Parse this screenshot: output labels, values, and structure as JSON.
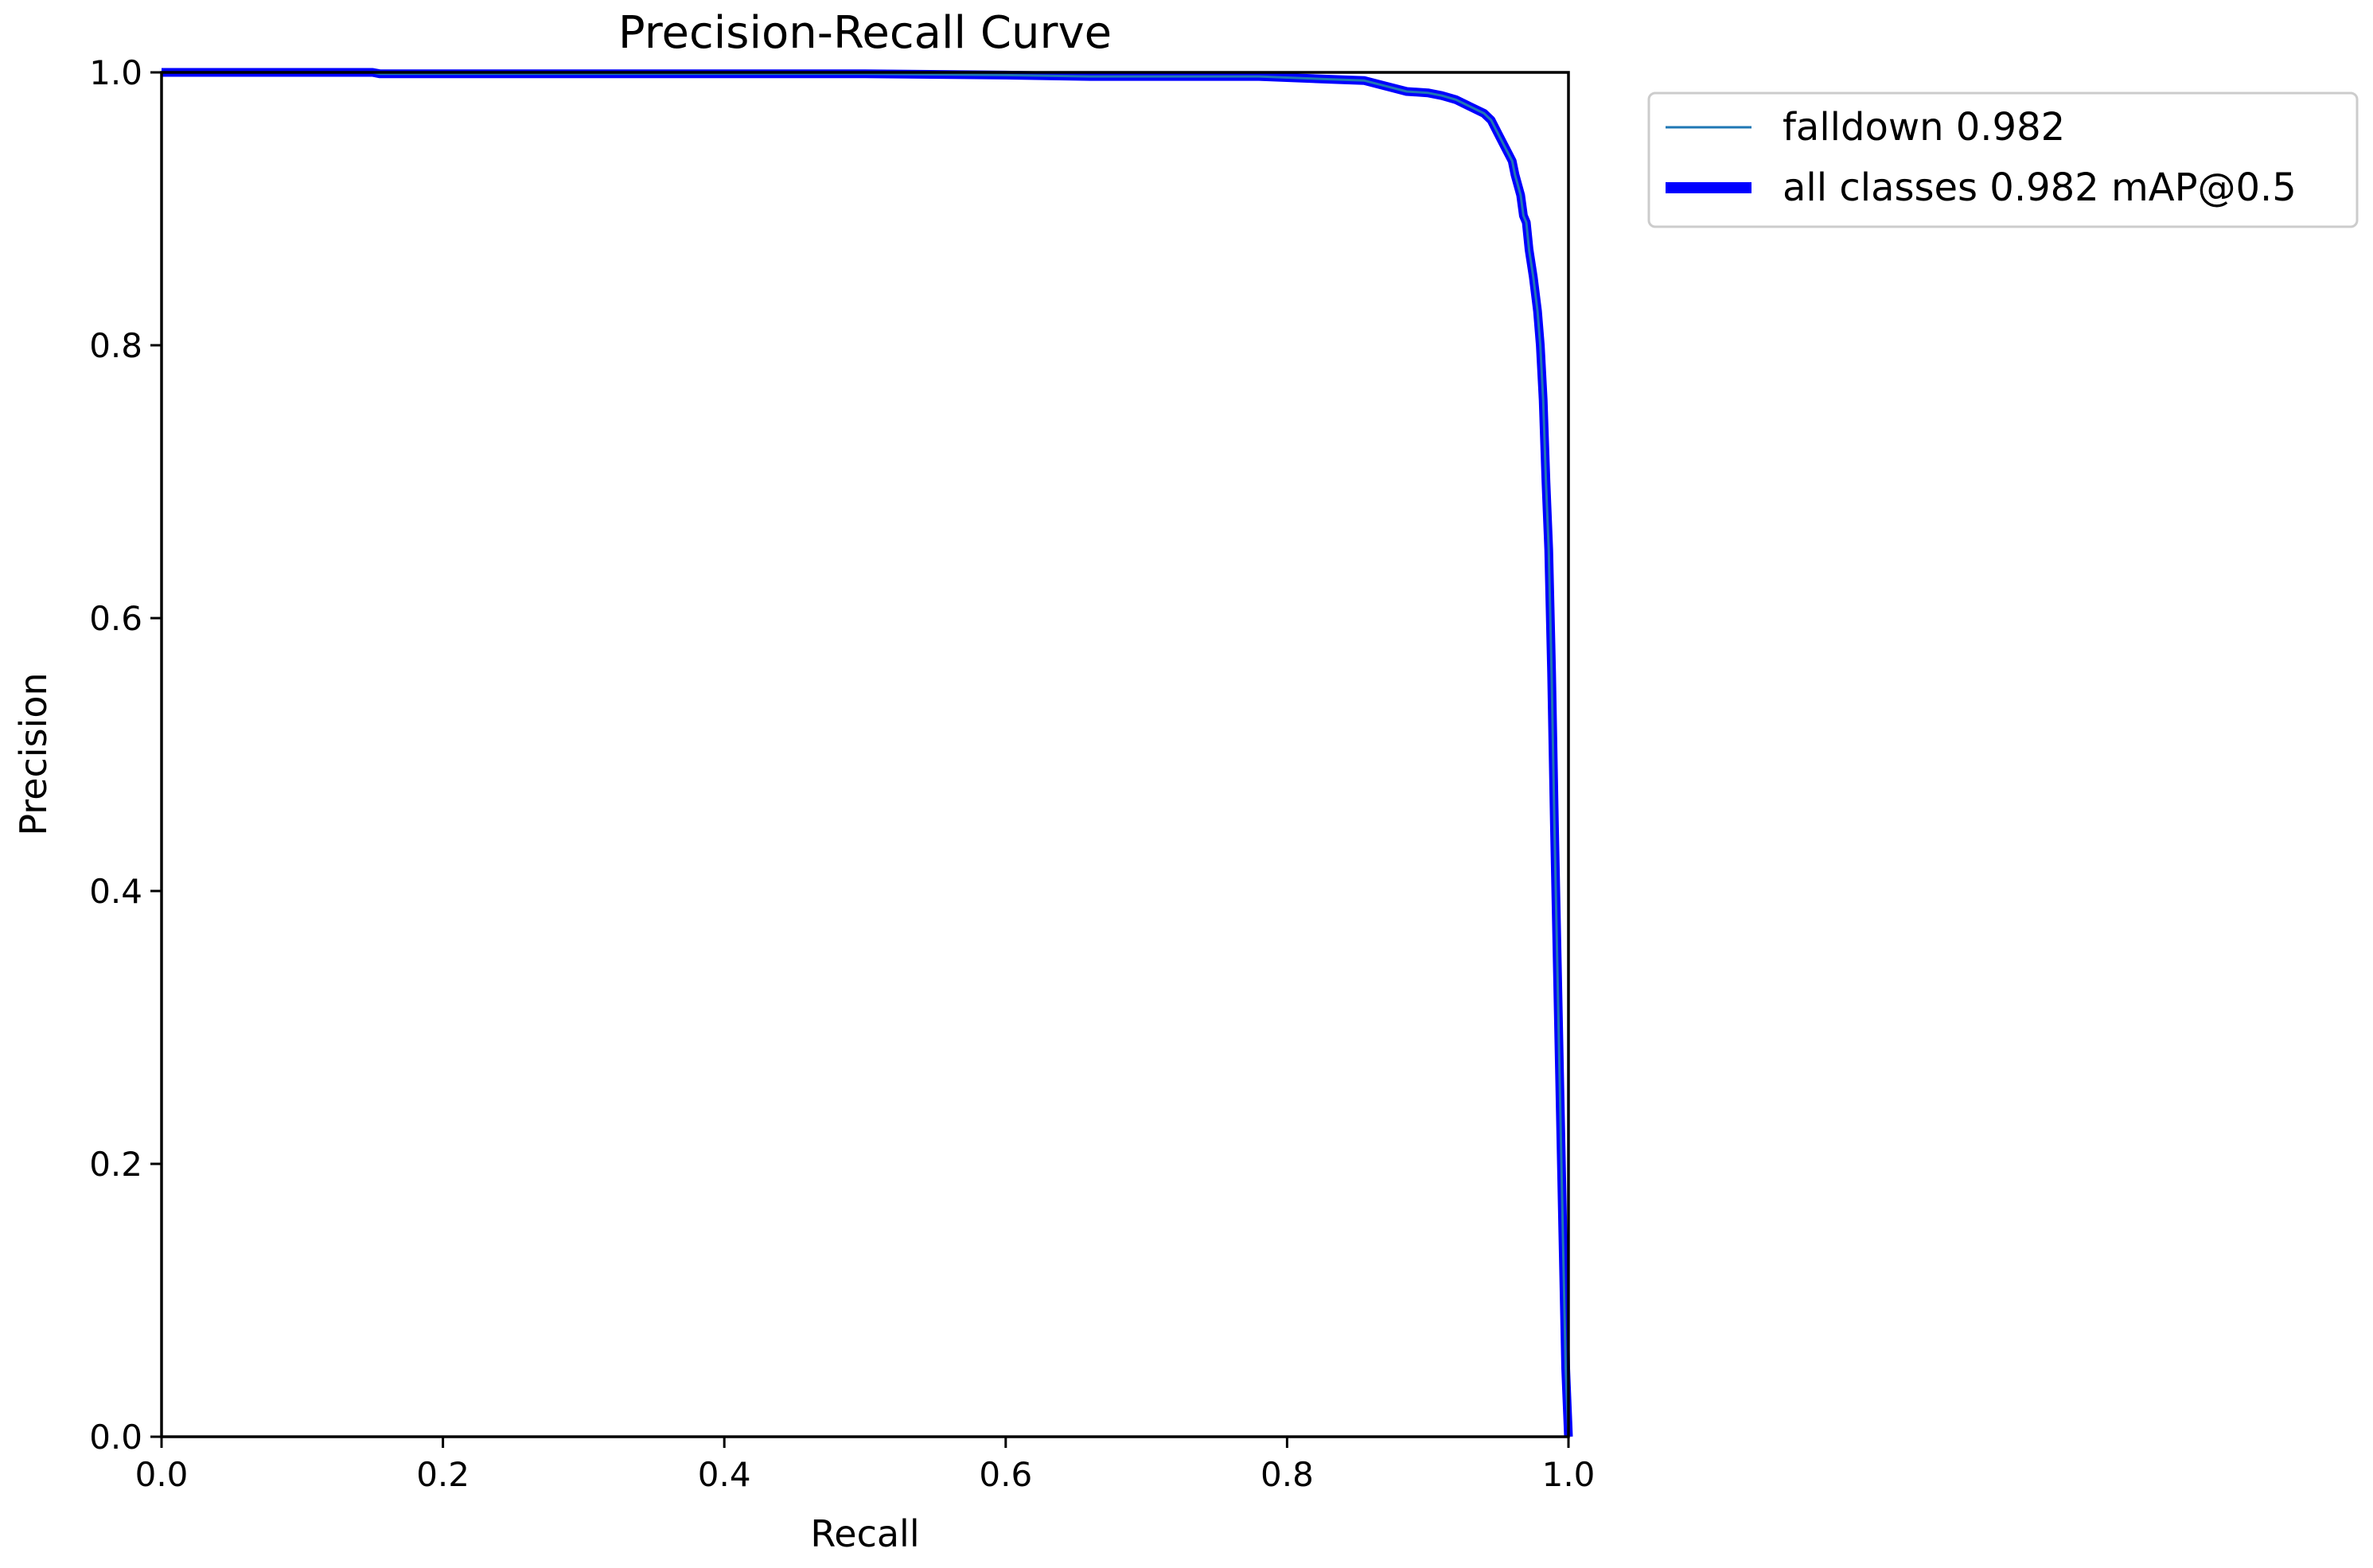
{
  "chart_data": {
    "type": "line",
    "title": "Precision-Recall Curve",
    "xlabel": "Recall",
    "ylabel": "Precision",
    "xlim": [
      0.0,
      1.0
    ],
    "ylim": [
      0.0,
      1.0
    ],
    "xticks": [
      0.0,
      0.2,
      0.4,
      0.6,
      0.8,
      1.0
    ],
    "yticks": [
      0.0,
      0.2,
      0.4,
      0.6,
      0.8,
      1.0
    ],
    "xtick_labels": [
      "0.0",
      "0.2",
      "0.4",
      "0.6",
      "0.8",
      "1.0"
    ],
    "ytick_labels": [
      "0.0",
      "0.2",
      "0.4",
      "0.6",
      "0.8",
      "1.0"
    ],
    "grid": false,
    "legend": {
      "placement": "outside-upper-right",
      "entries": [
        "falldown 0.982",
        "all classes 0.982 mAP@0.5"
      ]
    },
    "series": [
      {
        "name": "falldown 0.982",
        "color": "#1f77b4",
        "style": "thin",
        "x": [
          0.0,
          0.15,
          0.155,
          0.3,
          0.5,
          0.6,
          0.66,
          0.78,
          0.83,
          0.855,
          0.87,
          0.885,
          0.9,
          0.91,
          0.92,
          0.93,
          0.94,
          0.945,
          0.95,
          0.955,
          0.96,
          0.962,
          0.966,
          0.968,
          0.97,
          0.972,
          0.975,
          0.978,
          0.98,
          0.982,
          0.984,
          0.986,
          0.988,
          0.99,
          0.993,
          0.996,
          0.998,
          1.0
        ],
        "y": [
          1.0,
          1.0,
          0.999,
          0.999,
          0.999,
          0.998,
          0.997,
          0.997,
          0.995,
          0.994,
          0.99,
          0.986,
          0.985,
          0.983,
          0.98,
          0.975,
          0.97,
          0.965,
          0.955,
          0.945,
          0.935,
          0.925,
          0.91,
          0.895,
          0.89,
          0.87,
          0.85,
          0.825,
          0.8,
          0.76,
          0.7,
          0.65,
          0.56,
          0.45,
          0.3,
          0.15,
          0.05,
          0.0
        ]
      },
      {
        "name": "all classes 0.982 mAP@0.5",
        "color": "#0000ff",
        "style": "thick",
        "x": [
          0.0,
          0.15,
          0.155,
          0.3,
          0.5,
          0.6,
          0.66,
          0.78,
          0.83,
          0.855,
          0.87,
          0.885,
          0.9,
          0.91,
          0.92,
          0.93,
          0.94,
          0.945,
          0.95,
          0.955,
          0.96,
          0.962,
          0.966,
          0.968,
          0.97,
          0.972,
          0.975,
          0.978,
          0.98,
          0.982,
          0.984,
          0.986,
          0.988,
          0.99,
          0.993,
          0.996,
          0.998,
          1.0
        ],
        "y": [
          1.0,
          1.0,
          0.999,
          0.999,
          0.999,
          0.998,
          0.997,
          0.997,
          0.995,
          0.994,
          0.99,
          0.986,
          0.985,
          0.983,
          0.98,
          0.975,
          0.97,
          0.965,
          0.955,
          0.945,
          0.935,
          0.925,
          0.91,
          0.895,
          0.89,
          0.87,
          0.85,
          0.825,
          0.8,
          0.76,
          0.7,
          0.65,
          0.56,
          0.45,
          0.3,
          0.15,
          0.05,
          0.0
        ]
      }
    ]
  }
}
